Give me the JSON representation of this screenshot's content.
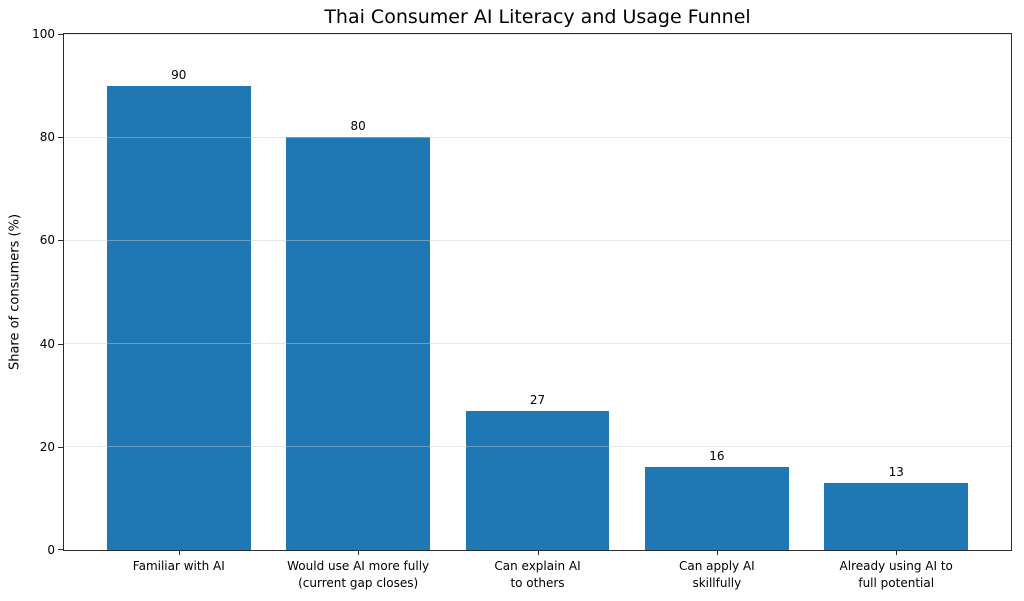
{
  "chart_data": {
    "type": "bar",
    "title": "Thai Consumer AI Literacy and Usage Funnel",
    "xlabel": "",
    "ylabel": "Share of consumers (%)",
    "categories": [
      "Familiar with AI",
      "Would use AI more fully\n(current gap closes)",
      "Can explain AI\nto others",
      "Can apply AI\nskillfully",
      "Already using AI to\nfull potential"
    ],
    "values": [
      90,
      80,
      27,
      16,
      13
    ],
    "value_labels": [
      "90",
      "80",
      "27",
      "16",
      "13"
    ],
    "ylim": [
      0,
      100
    ],
    "yticks": [
      0,
      20,
      40,
      60,
      80,
      100
    ],
    "bar_color": "#1f77b4",
    "gridline_color": "rgba(204,204,204,0.45)",
    "grid": "horizontal",
    "legend": "none",
    "bar_width_fraction": 0.8,
    "x_units_total": 5.28,
    "x_left_pad": 0.64
  }
}
